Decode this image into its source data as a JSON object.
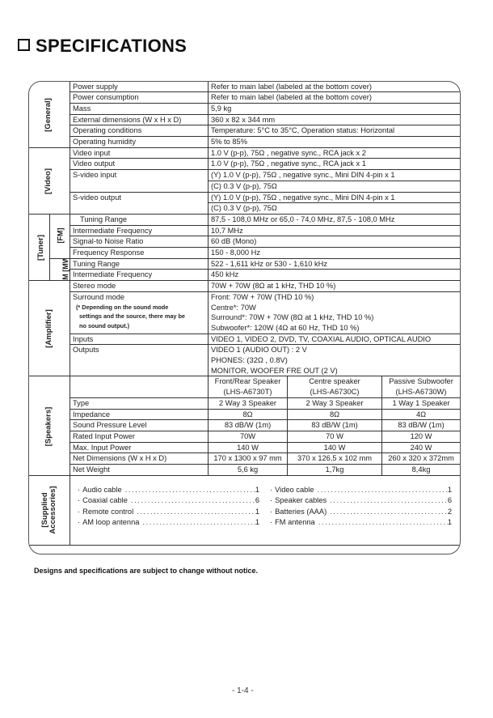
{
  "title": "SPECIFICATIONS",
  "sections": {
    "general": {
      "label": "[General]",
      "rows": [
        {
          "label": "Power supply",
          "value": "Refer to main label (labeled at the bottom cover)"
        },
        {
          "label": "Power consumption",
          "value": "Refer to main label (labeled at the bottom cover)"
        },
        {
          "label": "Mass",
          "value": "5,9 kg"
        },
        {
          "label": "External dimensions (W x H x D)",
          "value": "360 x 82 x 344 mm"
        },
        {
          "label": "Operating conditions",
          "value": "Temperature: 5°C to 35°C, Operation status: Horizontal"
        },
        {
          "label": "Operating humidity",
          "value": "5% to 85%"
        }
      ]
    },
    "video": {
      "label": "[Video]",
      "rows": [
        {
          "label": "Video input",
          "lines": [
            "1.0 V (p-p), 75Ω , negative sync., RCA jack x 2"
          ]
        },
        {
          "label": "Video output",
          "lines": [
            "1.0 V (p-p), 75Ω , negative sync., RCA jack x 1"
          ]
        },
        {
          "label": "S-video input",
          "lines": [
            "(Y) 1.0 V (p-p), 75Ω , negative sync., Mini DIN 4-pin x 1",
            "(C) 0.3 V (p-p), 75Ω"
          ]
        },
        {
          "label": "S-video output",
          "lines": [
            "(Y) 1.0 V (p-p), 75Ω , negative sync., Mini DIN 4-pin x 1",
            "(C) 0.3 V (p-p), 75Ω"
          ]
        }
      ]
    },
    "tuner": {
      "label": "[Tuner]",
      "fm_label": "[FM]",
      "am_label": "AM [MW]",
      "fm_rows": [
        {
          "label": "Tuning Range",
          "value": "87,5 - 108,0 MHz  or 65,0 - 74,0 MHz, 87,5 - 108,0 MHz"
        },
        {
          "label": "Intermediate Frequency",
          "value": "10,7 MHz"
        },
        {
          "label": "Signal-to Noise Ratio",
          "value": "60 dB (Mono)"
        },
        {
          "label": "Frequency Response",
          "value": "150 - 8,000 Hz"
        }
      ],
      "am_rows": [
        {
          "label": "Tuning Range",
          "value": "522 - 1,611 kHz or 530 - 1,610 kHz"
        },
        {
          "label": "Intermediate Frequency",
          "value": "450 kHz"
        }
      ]
    },
    "amplifier": {
      "label": "[Amplifier]",
      "rows": [
        {
          "label": "Stereo mode",
          "lines": [
            "70W + 70W (8Ω at 1 kHz, THD 10 %)"
          ]
        },
        {
          "label": "Surround mode",
          "note": "(* Depending on the sound mode settings and the source, there may be no sound output.)",
          "lines": [
            "Front: 70W + 70W (THD 10 %)",
            "Centre*: 70W",
            "Surround*: 70W + 70W (8Ω at 1 kHz, THD 10 %)",
            "Subwoofer*: 120W (4Ω at 60 Hz, THD 10 %)"
          ]
        },
        {
          "label": "Inputs",
          "lines": [
            "VIDEO 1, VIDEO 2, DVD, TV, COAXIAL AUDIO, OPTICAL AUDIO"
          ]
        },
        {
          "label": "Outputs",
          "lines": [
            "VIDEO 1 (AUDIO OUT) : 2 V",
            "PHONES: (32Ω , 0.8V)",
            "MONITOR, WOOFER FRE OUT (2 V)"
          ]
        }
      ]
    },
    "speakers": {
      "label": "[Speakers]",
      "columns": [
        [
          "Front/Rear Speaker",
          "(LHS-A6730T)"
        ],
        [
          "Centre speaker",
          "(LHS-A6730C)"
        ],
        [
          "Passive Subwoofer",
          "(LHS-A6730W)"
        ]
      ],
      "rows": [
        {
          "label": "Type",
          "values": [
            "2 Way 3 Speaker",
            "2 Way 3 Speaker",
            "1 Way 1 Speaker"
          ]
        },
        {
          "label": "Impedance",
          "values": [
            "8Ω",
            "8Ω",
            "4Ω"
          ]
        },
        {
          "label": "Sound Pressure Level",
          "values": [
            "83 dB/W (1m)",
            "83 dB/W (1m)",
            "83 dB/W (1m)"
          ]
        },
        {
          "label": "Rated Input Power",
          "values": [
            "70W",
            "70 W",
            "120 W"
          ]
        },
        {
          "label": "Max. Input Power",
          "values": [
            "140 W",
            "140 W",
            "240 W"
          ]
        },
        {
          "label": "Net Dimensions (W x H x D)",
          "values": [
            "170 x 1300 x 97 mm",
            "370 x 126,5 x 102 mm",
            "260 x 320 x 372mm"
          ]
        },
        {
          "label": "Net Weight",
          "values": [
            "5,6 kg",
            "1,7kg",
            "8,4kg"
          ]
        }
      ]
    },
    "accessories": {
      "label": "[Supplied Accessories]",
      "items": [
        {
          "name": "Audio cable",
          "qty": "1"
        },
        {
          "name": "Coaxial cable",
          "qty": "6"
        },
        {
          "name": "Remote control",
          "qty": "1"
        },
        {
          "name": "AM loop antenna",
          "qty": "1"
        },
        {
          "name": "Video cable",
          "qty": "1"
        },
        {
          "name": "Speaker cables",
          "qty": "6"
        },
        {
          "name": "Batteries (AAA)",
          "qty": "2"
        },
        {
          "name": "FM antenna",
          "qty": "1"
        }
      ]
    }
  },
  "footnote": "Designs and specifications are subject to change without notice.",
  "page_number": "- 1-4 -"
}
